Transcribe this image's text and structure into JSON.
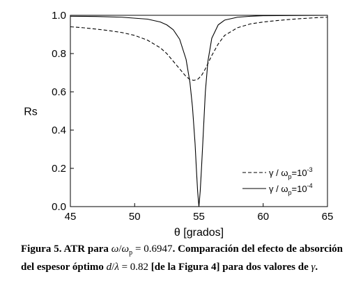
{
  "chart_data": {
    "type": "line",
    "title": "",
    "xlabel": "θ [grados]",
    "ylabel": "Rs",
    "xlim": [
      45,
      65
    ],
    "ylim": [
      0.0,
      1.0
    ],
    "x_ticks": [
      "45",
      "50",
      "55",
      "60",
      "65"
    ],
    "y_ticks": [
      "0.0",
      "0.2",
      "0.4",
      "0.6",
      "0.8",
      "1.0"
    ],
    "grid": false,
    "legend_placement": "bottom-right",
    "series": [
      {
        "name_parts": {
          "gamma": "γ",
          "sep": " / ",
          "omega": "ω",
          "sub": "p",
          "eq": "=10",
          "sup": "-3"
        },
        "style": "dashed",
        "x": [
          45,
          46,
          47,
          48,
          49,
          50,
          51,
          52,
          52.5,
          53,
          53.5,
          54,
          54.3,
          54.6,
          54.9,
          55.2,
          55.5,
          56,
          56.5,
          57,
          58,
          59,
          60,
          61,
          62,
          63,
          64,
          65
        ],
        "y": [
          0.94,
          0.935,
          0.928,
          0.92,
          0.91,
          0.895,
          0.87,
          0.83,
          0.8,
          0.76,
          0.72,
          0.68,
          0.665,
          0.66,
          0.665,
          0.685,
          0.72,
          0.79,
          0.85,
          0.895,
          0.935,
          0.955,
          0.965,
          0.972,
          0.978,
          0.983,
          0.987,
          0.99
        ]
      },
      {
        "name_parts": {
          "gamma": "γ",
          "sep": " / ",
          "omega": "ω",
          "sub": "p",
          "eq": "=10",
          "sup": "-4"
        },
        "style": "solid",
        "x": [
          45,
          47,
          49,
          50,
          51,
          52,
          52.5,
          53,
          53.5,
          54,
          54.3,
          54.5,
          54.7,
          54.8,
          54.9,
          55.0,
          55.1,
          55.2,
          55.3,
          55.5,
          55.7,
          56,
          56.5,
          57,
          58,
          59,
          60,
          62,
          65
        ],
        "y": [
          0.995,
          0.994,
          0.99,
          0.985,
          0.98,
          0.965,
          0.95,
          0.925,
          0.875,
          0.77,
          0.65,
          0.52,
          0.33,
          0.2,
          0.08,
          0.0,
          0.08,
          0.2,
          0.33,
          0.6,
          0.76,
          0.88,
          0.95,
          0.975,
          0.99,
          0.995,
          0.998,
          0.999,
          1.0
        ]
      }
    ]
  },
  "caption": {
    "fig_label": "Figura 5.",
    "p1": " ATR para ",
    "omega": "ω",
    "slash": "/",
    "omega2": "ω",
    "sub_p": "p",
    "eq_val": " = 0.6947",
    "p2": ". Comparación del efecto de absorción del espesor óptimo ",
    "d": "d",
    "slash2": "/",
    "lambda": "λ",
    "eq_val2": " = 0.82",
    "p3": " [de la Figura 4] para dos valores de ",
    "gamma": "γ",
    "end": "."
  }
}
